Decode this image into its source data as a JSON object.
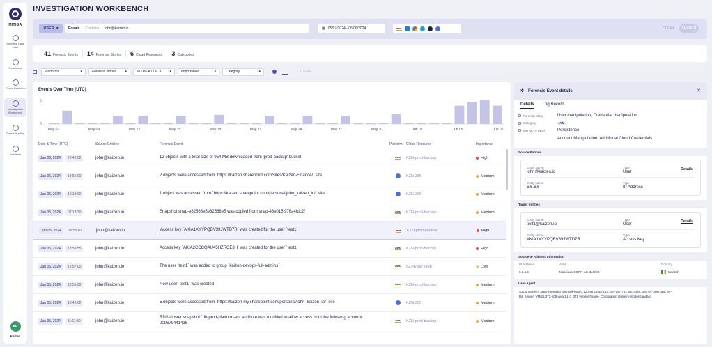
{
  "sidebar": {
    "brand": "MITIGA",
    "items": [
      {
        "label": "Forensic Data Lake",
        "icon": "database-icon"
      },
      {
        "label": "Readiness",
        "icon": "gauge-icon"
      },
      {
        "label": "Threat Detection",
        "icon": "radar-icon"
      },
      {
        "label": "Investigation Workbench",
        "icon": "workbench-icon"
      },
      {
        "label": "Threat Hunting",
        "icon": "target-icon"
      },
      {
        "label": "Incidents",
        "icon": "alert-icon"
      }
    ],
    "user_initials": "AR",
    "org": "Kaizen"
  },
  "page_title": "INVESTIGATION WORKBENCH",
  "filter": {
    "field": "USER",
    "op_equals": "Equals",
    "op_contains": "Contains",
    "value": "john@kaizen.io",
    "date_range": "05/07/2024 - 06/06/2024",
    "clear": "CLEAR",
    "search": "SEARCH"
  },
  "stats": [
    {
      "count": "41",
      "label": "Forensic Events"
    },
    {
      "count": "14",
      "label": "Forensic Stories"
    },
    {
      "count": "6",
      "label": "Cloud Resources"
    },
    {
      "count": "3",
      "label": "Categories"
    }
  ],
  "facets": {
    "items": [
      "Platforms",
      "Forensic stories",
      "MITRE ATT&CK",
      "Importance",
      "Category"
    ],
    "clear": "CLEAR"
  },
  "chart_data": {
    "type": "bar",
    "title": "Events Over Time (UTC)",
    "ylim": [
      0,
      6
    ],
    "yticks": [
      "5",
      "0"
    ],
    "tick_labels": [
      "May 07",
      "May 09",
      "May 12",
      "May 15",
      "May 18",
      "May 21",
      "May 24",
      "May 27",
      "May 30",
      "Jun 02",
      "Jun 05",
      "Jun 06"
    ],
    "values": [
      0.2,
      3.2,
      0.2,
      0.2,
      0.2,
      2,
      0.2,
      2,
      0.2,
      0.2,
      2,
      0.2,
      0.2,
      2.2,
      0.2,
      0.2,
      0.2,
      2,
      0.2,
      0.2,
      2,
      0.2,
      0.2,
      2,
      0.2,
      0.2,
      0.2,
      2.4,
      0.2,
      0.2,
      0.2,
      0.2,
      4.4,
      5.2,
      5.8,
      4.4
    ]
  },
  "table": {
    "headers": [
      "Date & Time (UTC)",
      "Source Entities",
      "Forensic Event",
      "Platform",
      "Cloud Resource",
      "Importance"
    ],
    "rows": [
      {
        "date": "Jun 06, 2024",
        "time": "20:43:02",
        "src": "john@kaizen.io",
        "event": "12 objects with a total size of 954 MB downloaded from 'prod-backup' bucket",
        "platform": "aws",
        "resource": "KZN-prod-backup",
        "importance": "High",
        "color": "#e5533d"
      },
      {
        "date": "Jun 06, 2024",
        "time": "19:55:00",
        "src": "john@kaizen.io",
        "event": "2 objects were accessed from `https://kaizen.sharepoint.com/sites/Kaizen-Finance/` site",
        "platform": "m365",
        "resource": "KZN-365",
        "importance": "Medium",
        "color": "#f0a23b"
      },
      {
        "date": "Jun 06, 2024",
        "time": "10:13:00",
        "src": "john@kaizen.io",
        "event": "1 object was accessed from `https://kaizen.sharepoint.com/personal/john_kaizen_io/` site",
        "platform": "m365",
        "resource": "KZN-365",
        "importance": "Medium",
        "color": "#f0a23b"
      },
      {
        "date": "Jun 05, 2024",
        "time": "07:13:30",
        "src": "john@kaizen.io",
        "event": "Snapshot snap-e82568e5e82568e5 was copied from snap-43e015f976a4fdc2f",
        "platform": "aws",
        "resource": "KZN-prod-backup",
        "importance": "Medium",
        "color": "#f0a23b"
      },
      {
        "date": "Jun 05, 2024",
        "time": "19:59:01",
        "src": "john@kaizen.io",
        "event": "Access key `AKIA1XYYPQBV39JWTD7R` was created for the user `test1`",
        "platform": "aws",
        "resource": "KZN-prod-backup",
        "importance": "High",
        "color": "#e5533d"
      },
      {
        "date": "Jun 05, 2024",
        "time": "18:58:55",
        "src": "john@kaizen.io",
        "event": "Access key `AKIA2CCCQAU45HZRCE3H` was created for the user `test1`",
        "platform": "aws",
        "resource": "KZN-prod-backup",
        "importance": "High",
        "color": "#e5533d"
      },
      {
        "date": "Jun 05, 2024",
        "time": "18:57:00",
        "src": "john@kaizen.io",
        "event": "The user `test1` was added to group `kaizen-devops-full-admins`",
        "platform": "aws",
        "resource": "523478872498",
        "importance": "Low",
        "color": "#f2c94c"
      },
      {
        "date": "Jun 05, 2024",
        "time": "18:55:00",
        "src": "john@kaizen.io",
        "event": "New user `test1` was created",
        "platform": "aws",
        "resource": "KZN-prod-backup",
        "importance": "Medium",
        "color": "#f0a23b"
      },
      {
        "date": "Jun 05, 2024",
        "time": "16:43:02",
        "src": "john@kaizen.io",
        "event": "5 objects were accessed from `https://kaizen-my.sharepoint.com/personal/john_kaizen_io/` site",
        "platform": "m365",
        "resource": "KZN-365",
        "importance": "Medium",
        "color": "#f0a23b"
      },
      {
        "date": "Jun 05, 2024",
        "time": "11:11:30",
        "src": "john@kaizen.io",
        "event": "RDS cluster snapshot `db-prod-platform-eu` attribute was modified to allow access from the following account: 209679441416",
        "platform": "aws",
        "resource": "KZN-prod-backup",
        "importance": "Medium",
        "color": "#f0a23b"
      }
    ]
  },
  "panel": {
    "title": "Forensic Event details",
    "tabs": [
      "Details",
      "Log Record"
    ],
    "story_label": "Forensic story",
    "story_value": "User manipulation, Credential manipulation",
    "category_label": "Category",
    "category_value": "IAM",
    "mitre_label": "MITRE ATT&CK",
    "mitre_tactic": "Persistence",
    "mitre_technique": "Account Manipulation: Additional Cloud Credentials",
    "source_title": "Source Entities",
    "target_title": "Target Entities",
    "entity_name_label": "Entity Name",
    "type_label": "Type",
    "details_link": "Details",
    "source": [
      {
        "name": "john@kaizen.io",
        "type": "User"
      },
      {
        "name": "6.6.6.6",
        "type": "IP Address"
      }
    ],
    "target": [
      {
        "name": "test1@kaizen.io",
        "type": "User"
      },
      {
        "name": "AKIA1XYYPQBV39JWTD7R",
        "type": "Access Key"
      }
    ],
    "ip_title": "Source IP Address Information",
    "ip_headers": [
      "IP Address",
      "ASN",
      "Country"
    ],
    "ip": "6.6.6.6",
    "asn": "Malicious-CORP-AS-BLOCK",
    "country": "Ireland",
    "ua_title": "User-Agent",
    "ua": "S3Console/0.4, aws-internal/3 aws-sdk-java/1.12.488 Linux/5.10.184-157.751.amzn2int.x86_64 OpenJDK 64-Bit_Server_VM/25.372-b08 java/1.8.0_371 vendor/Oracle_Corporation cfg/retry-mode/standard"
  }
}
